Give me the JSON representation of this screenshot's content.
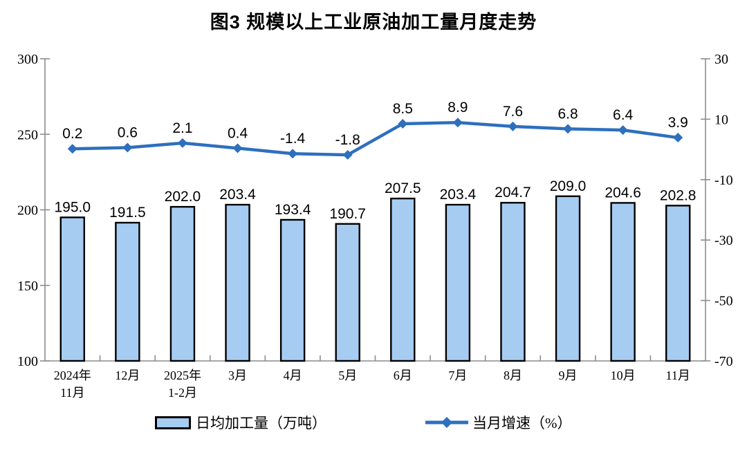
{
  "title": "图3 规模以上工业原油加工量月度走势",
  "chart_data": {
    "type": "bar+line combo",
    "categories": [
      [
        "2024年",
        "11月"
      ],
      [
        "12月"
      ],
      [
        "2025年",
        "1-2月"
      ],
      [
        "3月"
      ],
      [
        "4月"
      ],
      [
        "5月"
      ],
      [
        "6月"
      ],
      [
        "7月"
      ],
      [
        "8月"
      ],
      [
        "9月"
      ],
      [
        "10月"
      ],
      [
        "11月"
      ]
    ],
    "series": [
      {
        "name": "日均加工量（万吨）",
        "type": "bar",
        "axis": "left",
        "values": [
          195.0,
          191.5,
          202.0,
          203.4,
          193.4,
          190.7,
          207.5,
          203.4,
          204.7,
          209.0,
          204.6,
          202.8
        ],
        "fill": "#A6CCF2",
        "stroke": "#000000"
      },
      {
        "name": "当月增速（%）",
        "type": "line",
        "axis": "right",
        "values": [
          0.2,
          0.6,
          2.1,
          0.4,
          -1.4,
          -1.8,
          8.5,
          8.9,
          7.6,
          6.8,
          6.4,
          3.9
        ],
        "color": "#2E6FBE"
      }
    ],
    "left_axis": {
      "min": 100,
      "max": 300,
      "ticks": [
        300,
        250,
        200,
        150,
        100
      ]
    },
    "right_axis": {
      "min": -70,
      "max": 30,
      "ticks": [
        30,
        10,
        -10,
        -30,
        -50,
        -70
      ]
    },
    "grid": false,
    "legend_position": "bottom",
    "axis_color": "#8C8C8C",
    "label_color": "#000000"
  }
}
